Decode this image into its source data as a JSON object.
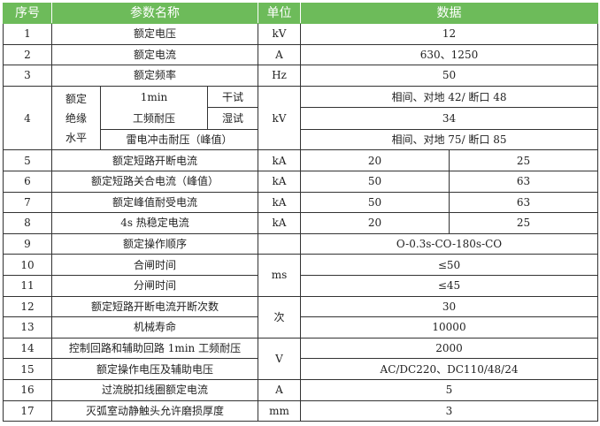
{
  "header": {
    "no": "序号",
    "param": "参数名称",
    "unit": "单位",
    "data": "数据"
  },
  "colors": {
    "header_bg": "#6dbb5a",
    "header_text": "#ffffff"
  },
  "rows": {
    "r1": {
      "no": "1",
      "param": "额定电压",
      "unit": "kV",
      "value": "12"
    },
    "r2": {
      "no": "2",
      "param": "额定电流",
      "unit": "A",
      "value": "630、1250"
    },
    "r3": {
      "no": "3",
      "param": "额定频率",
      "unit": "Hz",
      "value": "50"
    },
    "r4": {
      "no": "4",
      "group": "额定绝缘水平",
      "pf_line1": "1min",
      "pf_line2": "工频耐压",
      "dry": "干试",
      "wet": "湿试",
      "dry_value": "相间、对地 42/ 断口 48",
      "wet_value": "34",
      "lightning": "雷电冲击耐压（峰值）",
      "lightning_value": "相间、对地 75/ 断口 85",
      "unit": "kV"
    },
    "r5": {
      "no": "5",
      "param": "额定短路开断电流",
      "unit": "kA",
      "v1": "20",
      "v2": "25"
    },
    "r6": {
      "no": "6",
      "param": "额定短路关合电流（峰值）",
      "unit": "kA",
      "v1": "50",
      "v2": "63"
    },
    "r7": {
      "no": "7",
      "param": "额定峰值耐受电流",
      "unit": "kA",
      "v1": "50",
      "v2": "63"
    },
    "r8": {
      "no": "8",
      "param": "4s 热稳定电流",
      "unit": "kA",
      "v1": "20",
      "v2": "25"
    },
    "r9": {
      "no": "9",
      "param": "额定操作顺序",
      "unit": "",
      "value": "O-0.3s-CO-180s-CO"
    },
    "r10": {
      "no": "10",
      "param": "合闸时间",
      "unit": "ms",
      "value": "≤50"
    },
    "r11": {
      "no": "11",
      "param": "分闸时间",
      "value": "≤45"
    },
    "r12": {
      "no": "12",
      "param": "额定短路开断电流开断次数",
      "unit": "次",
      "value": "30"
    },
    "r13": {
      "no": "13",
      "param": "机械寿命",
      "value": "10000"
    },
    "r14": {
      "no": "14",
      "param": "控制回路和辅助回路 1min 工频耐压",
      "unit": "V",
      "value": "2000"
    },
    "r15": {
      "no": "15",
      "param": "额定操作电压及辅助电压",
      "value": "AC/DC220、DC110/48/24"
    },
    "r16": {
      "no": "16",
      "param": "过流脱扣线圈额定电流",
      "unit": "A",
      "value": "5"
    },
    "r17": {
      "no": "17",
      "param": "灭弧室动静触头允许磨损厚度",
      "unit": "mm",
      "value": "3"
    }
  }
}
